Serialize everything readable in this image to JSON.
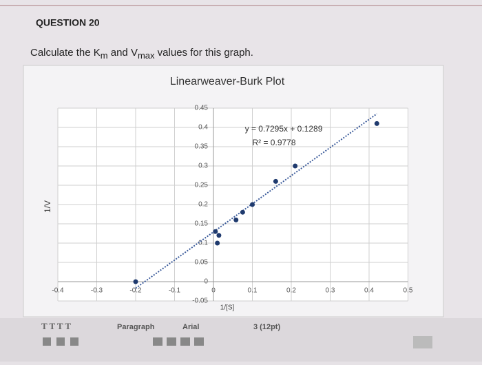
{
  "question": {
    "header": "QUESTION 20",
    "prompt": [
      "Calculate the K",
      "m",
      " and V",
      "max",
      " values for this graph."
    ]
  },
  "chart_data": {
    "type": "scatter",
    "title": "Linearweaver-Burk Plot",
    "x_label": "1/[S]",
    "y_label": "1/V",
    "x": [
      -0.2,
      0.005,
      0.014,
      0.01,
      0.058,
      0.075,
      0.1,
      0.16,
      0.21,
      0.42
    ],
    "values": [
      0.0,
      0.13,
      0.12,
      0.1,
      0.16,
      0.18,
      0.2,
      0.26,
      0.3,
      0.41
    ],
    "color": "#1f3a6e",
    "xlim": [
      -0.4,
      0.5
    ],
    "ylim": [
      -0.05,
      0.45
    ],
    "xticks": [
      -0.4,
      -0.3,
      -0.2,
      -0.1,
      0,
      0.1,
      0.2,
      0.3,
      0.4,
      0.5
    ],
    "yticks": [
      -0.05,
      0,
      0.05,
      0.1,
      0.15,
      0.2,
      0.25,
      0.3,
      0.35,
      0.4,
      0.45
    ],
    "grid": true,
    "trendline": {
      "slope": 0.7295,
      "intercept": 0.1289,
      "equation": "y = 0.7295x + 0.1289",
      "r_squared": "R² = 0.9778"
    }
  },
  "toolbar": {
    "text_styles": "T T T T",
    "block": "Paragraph",
    "font": "Arial",
    "size": "3 (12pt)"
  }
}
